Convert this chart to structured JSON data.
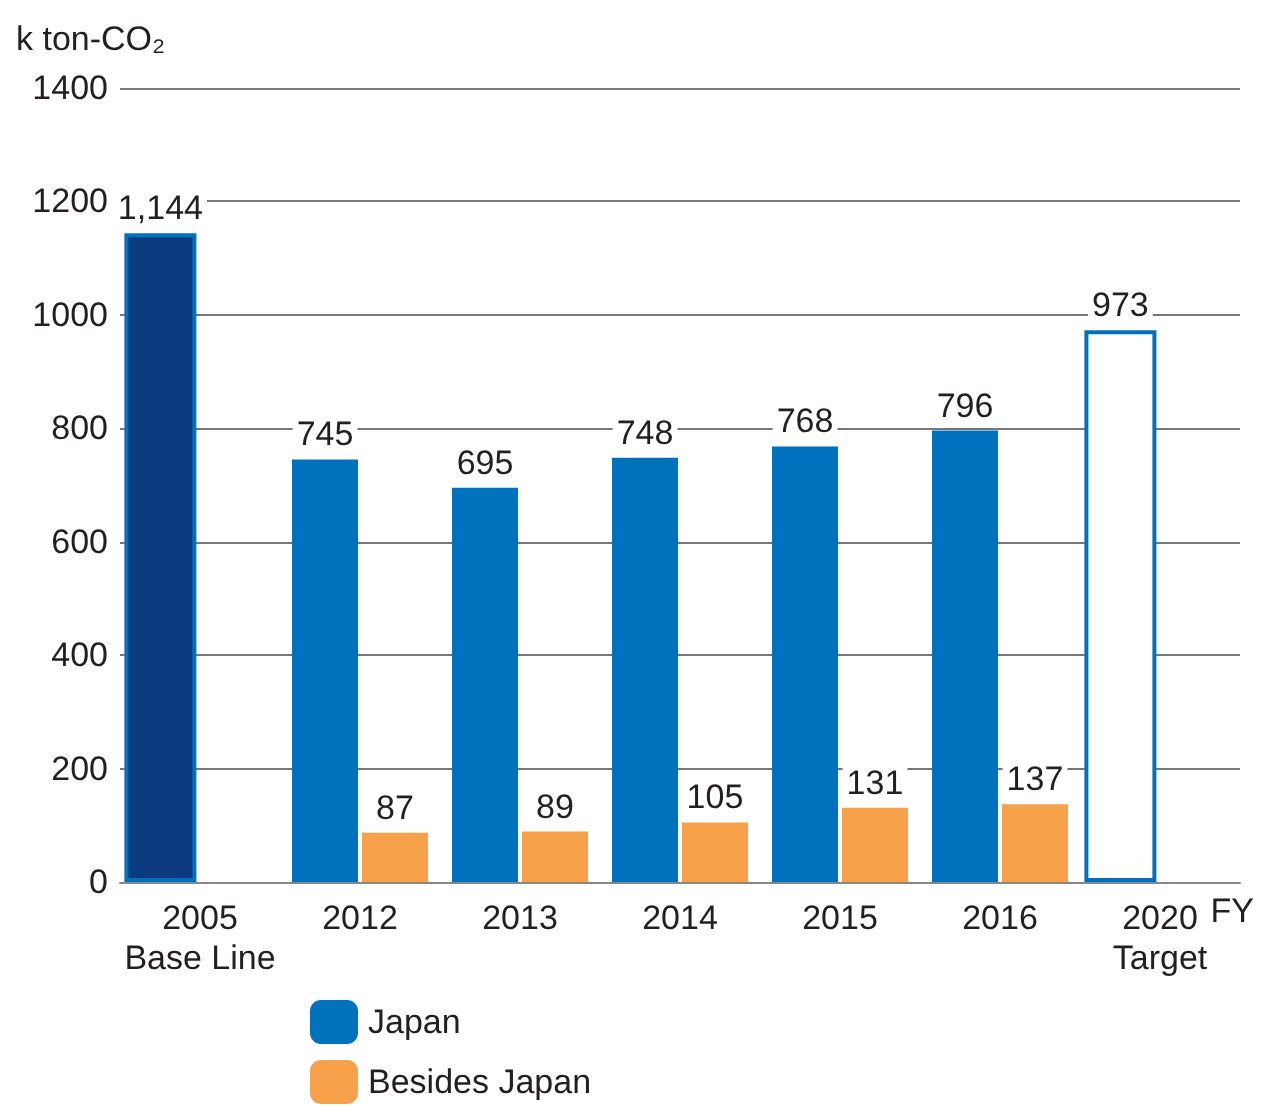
{
  "chart_data": {
    "type": "bar",
    "ylabel": "k ton-CO₂",
    "xlabel": "FY",
    "categories": [
      "2005\nBase Line",
      "2012",
      "2013",
      "2014",
      "2015",
      "2016",
      "2020\nTarget"
    ],
    "series": [
      {
        "name": "Japan",
        "color": "#0071bc",
        "colors": [
          "#0c3a7e",
          "#0071bc",
          "#0071bc",
          "#0071bc",
          "#0071bc",
          "#0071bc",
          "#ffffff"
        ],
        "values": [
          1144,
          745,
          695,
          748,
          768,
          796,
          973
        ],
        "value_labels": [
          "1,144",
          "745",
          "695",
          "748",
          "768",
          "796",
          "973"
        ]
      },
      {
        "name": "Besides Japan",
        "color": "#f7a14a",
        "values": [
          null,
          87,
          89,
          105,
          131,
          137,
          null
        ],
        "value_labels": [
          null,
          "87",
          "89",
          "105",
          "131",
          "137",
          null
        ]
      }
    ],
    "ylim": [
      0,
      1400
    ],
    "yticks": [
      0,
      200,
      400,
      600,
      800,
      1000,
      1200,
      1400
    ],
    "grid": "y",
    "legend": "bottom left"
  }
}
